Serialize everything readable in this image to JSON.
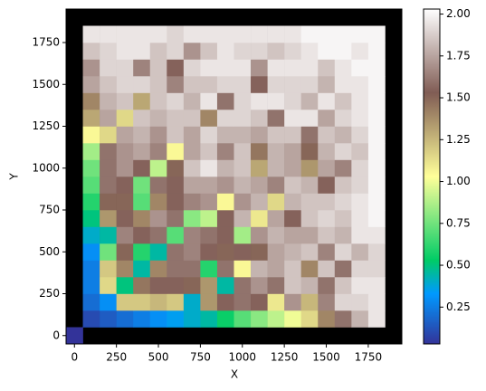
{
  "chart_data": {
    "type": "heatmap",
    "xlabel": "X",
    "ylabel": "Y",
    "colormap": "terrain",
    "background": "#000000",
    "x": [
      0,
      100,
      200,
      300,
      400,
      500,
      600,
      700,
      800,
      900,
      1000,
      1100,
      1200,
      1300,
      1400,
      1500,
      1600,
      1700,
      1800,
      1900
    ],
    "y": [
      0,
      100,
      200,
      300,
      400,
      500,
      600,
      700,
      800,
      900,
      1000,
      1100,
      1200,
      1300,
      1400,
      1500,
      1600,
      1700,
      1800,
      1900
    ],
    "xlim": [
      -50,
      1950
    ],
    "ylim": [
      -50,
      1950
    ],
    "xticks": [
      0,
      250,
      500,
      750,
      1000,
      1250,
      1500,
      1750
    ],
    "yticks": [
      0,
      250,
      500,
      750,
      1000,
      1250,
      1500,
      1750
    ],
    "clim": [
      0.03,
      2.03
    ],
    "cticks": [
      {
        "value": 0.25,
        "label": "0.25"
      },
      {
        "value": 0.5,
        "label": "0.50"
      },
      {
        "value": 0.75,
        "label": "0.75"
      },
      {
        "value": 1.0,
        "label": "1.00"
      },
      {
        "value": 1.25,
        "label": "1.25"
      },
      {
        "value": 1.5,
        "label": "1.50"
      },
      {
        "value": 1.75,
        "label": "1.75"
      },
      {
        "value": 2.0,
        "label": "2.00"
      }
    ],
    "z": [
      [
        0.03,
        null,
        null,
        null,
        null,
        null,
        null,
        null,
        null,
        null,
        null,
        null,
        null,
        null,
        null,
        null,
        null,
        null,
        null,
        null
      ],
      [
        null,
        0.1,
        0.15,
        0.2,
        0.25,
        0.3,
        0.35,
        0.4,
        0.45,
        0.55,
        0.7,
        0.8,
        0.9,
        1.0,
        1.15,
        1.4,
        1.6,
        1.8,
        1.95,
        null
      ],
      [
        null,
        0.2,
        0.3,
        1.2,
        1.2,
        1.25,
        1.2,
        0.4,
        1.35,
        1.55,
        1.6,
        1.55,
        1.1,
        1.7,
        1.25,
        1.65,
        1.9,
        1.9,
        1.95,
        null
      ],
      [
        null,
        0.25,
        1.15,
        0.5,
        1.45,
        1.55,
        1.55,
        1.5,
        1.35,
        0.45,
        1.6,
        1.7,
        1.6,
        1.85,
        1.8,
        1.6,
        1.85,
        1.95,
        1.95,
        null
      ],
      [
        null,
        0.25,
        1.2,
        1.4,
        0.45,
        1.4,
        1.6,
        1.6,
        0.6,
        1.6,
        1.05,
        1.8,
        1.75,
        1.85,
        1.4,
        1.85,
        1.6,
        1.9,
        1.9,
        null
      ],
      [
        null,
        0.3,
        0.75,
        1.5,
        0.6,
        0.45,
        1.6,
        1.65,
        1.55,
        1.5,
        1.55,
        1.5,
        1.75,
        1.8,
        1.85,
        1.65,
        1.9,
        1.8,
        1.9,
        null
      ],
      [
        null,
        0.4,
        0.45,
        1.65,
        1.55,
        1.6,
        0.7,
        1.65,
        1.6,
        1.55,
        0.85,
        1.7,
        1.8,
        1.75,
        1.75,
        1.85,
        1.8,
        1.95,
        1.95,
        null
      ],
      [
        null,
        0.5,
        1.35,
        1.55,
        1.4,
        1.7,
        1.6,
        0.8,
        0.9,
        1.55,
        1.8,
        1.1,
        1.75,
        1.55,
        1.85,
        1.9,
        1.85,
        1.95,
        2.0,
        null
      ],
      [
        null,
        0.6,
        1.5,
        1.5,
        0.7,
        1.4,
        1.55,
        1.65,
        1.7,
        1.05,
        1.7,
        1.8,
        1.15,
        1.8,
        1.85,
        1.85,
        1.9,
        1.95,
        2.0,
        null
      ],
      [
        null,
        0.7,
        1.6,
        1.55,
        0.75,
        1.6,
        1.55,
        1.75,
        1.75,
        1.7,
        1.8,
        1.75,
        1.65,
        1.85,
        1.8,
        1.55,
        1.85,
        1.9,
        2.0,
        null
      ],
      [
        null,
        0.75,
        1.6,
        1.7,
        1.55,
        0.9,
        1.5,
        1.85,
        1.95,
        1.8,
        1.85,
        1.3,
        1.8,
        1.75,
        1.35,
        1.75,
        1.65,
        1.9,
        2.0,
        null
      ],
      [
        null,
        0.85,
        1.6,
        1.7,
        1.75,
        1.65,
        1.05,
        1.75,
        1.85,
        1.65,
        1.85,
        1.45,
        1.8,
        1.75,
        1.5,
        1.8,
        1.9,
        1.85,
        2.0,
        null
      ],
      [
        null,
        1.05,
        1.15,
        1.75,
        1.8,
        1.7,
        1.85,
        1.75,
        1.9,
        1.8,
        1.8,
        1.75,
        1.85,
        1.85,
        1.6,
        1.85,
        1.8,
        1.9,
        2.0,
        null
      ],
      [
        null,
        1.3,
        1.75,
        1.15,
        1.85,
        1.8,
        1.85,
        1.85,
        1.4,
        1.9,
        1.9,
        1.85,
        1.6,
        1.95,
        1.95,
        1.75,
        1.9,
        1.95,
        2.0,
        null
      ],
      [
        null,
        1.4,
        1.8,
        1.85,
        1.3,
        1.85,
        1.9,
        1.8,
        1.95,
        1.6,
        1.9,
        1.95,
        1.95,
        1.9,
        1.8,
        1.95,
        1.85,
        1.95,
        2.0,
        null
      ],
      [
        null,
        1.75,
        1.85,
        1.9,
        1.9,
        1.85,
        1.65,
        1.85,
        1.85,
        1.9,
        1.9,
        1.55,
        1.9,
        1.9,
        1.9,
        1.8,
        1.95,
        1.95,
        2.0,
        null
      ],
      [
        null,
        1.7,
        1.9,
        1.9,
        1.65,
        1.85,
        1.55,
        1.9,
        1.95,
        1.95,
        1.95,
        1.7,
        1.95,
        1.95,
        1.95,
        1.85,
        1.95,
        2.0,
        2.0,
        null
      ],
      [
        null,
        1.85,
        1.9,
        1.95,
        1.95,
        1.85,
        1.9,
        1.7,
        1.85,
        1.95,
        1.9,
        1.9,
        1.85,
        1.9,
        1.95,
        2.0,
        2.0,
        1.95,
        2.0,
        null
      ],
      [
        null,
        1.95,
        1.95,
        1.95,
        1.95,
        1.95,
        1.9,
        1.95,
        1.95,
        1.95,
        1.95,
        1.95,
        1.95,
        1.95,
        2.0,
        2.0,
        2.0,
        2.0,
        2.0,
        null
      ],
      [
        null,
        null,
        null,
        null,
        null,
        null,
        null,
        null,
        null,
        null,
        null,
        null,
        null,
        null,
        null,
        null,
        null,
        null,
        null,
        null
      ]
    ]
  }
}
